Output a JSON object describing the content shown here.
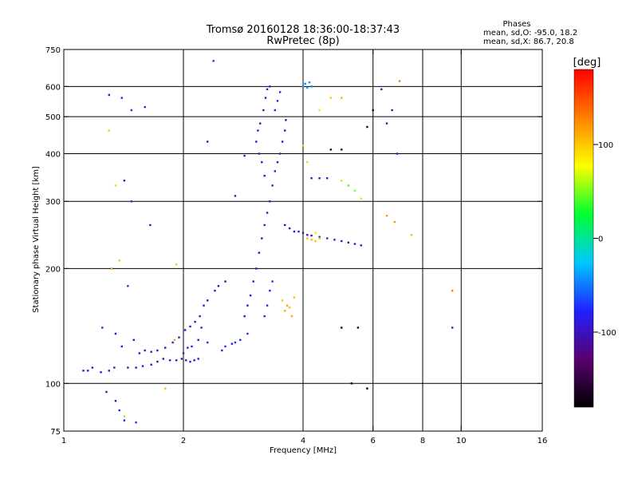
{
  "chart_data": {
    "type": "scatter",
    "title_line1": "Tromsø 20160128 18:36:00-18:37:43",
    "title_line2": "RwPretec (8p)",
    "stats": {
      "heading": "Phases",
      "line_o": "mean, sd,O: -95.0, 18.2",
      "line_x": "mean, sd,X: 86.7, 20.8"
    },
    "xlabel": "Frequency [MHz]",
    "ylabel": "Stationary phase Virtual Height [km]",
    "x_scale": "log",
    "y_scale": "log",
    "xlim": [
      1,
      16
    ],
    "ylim": [
      75,
      750
    ],
    "x_ticks": [
      1,
      2,
      4,
      6,
      8,
      10,
      16
    ],
    "y_ticks": [
      75,
      100,
      200,
      300,
      400,
      500,
      600,
      750
    ],
    "x_grid": [
      2,
      4,
      6,
      8,
      10
    ],
    "y_grid": [
      100,
      200,
      300,
      400,
      500,
      600
    ],
    "grid": true,
    "colorbar": {
      "label": "[deg]",
      "min": -180,
      "max": 180,
      "ticks": [
        100,
        0,
        -100
      ],
      "colors": [
        "#000000",
        "#5a0070",
        "#2020ff",
        "#00c8ff",
        "#00ff30",
        "#ffff00",
        "#ff8000",
        "#ff0000"
      ]
    },
    "series": [
      {
        "values": [
          [
            1.12,
            108,
            -100
          ],
          [
            1.15,
            108,
            -100
          ],
          [
            1.18,
            110,
            -95
          ],
          [
            1.24,
            107,
            -90
          ],
          [
            1.3,
            108,
            -100
          ],
          [
            1.34,
            110,
            -95
          ],
          [
            1.45,
            110,
            -100
          ],
          [
            1.52,
            110,
            -100
          ],
          [
            1.58,
            111,
            -95
          ],
          [
            1.66,
            112,
            -100
          ],
          [
            1.72,
            114,
            -100
          ],
          [
            1.78,
            116,
            -105
          ],
          [
            1.85,
            115,
            -100
          ],
          [
            1.92,
            115,
            -95
          ],
          [
            1.98,
            116,
            -100
          ],
          [
            2.03,
            115,
            -100
          ],
          [
            2.08,
            114,
            -95
          ],
          [
            2.13,
            115,
            -100
          ],
          [
            2.18,
            116,
            -100
          ],
          [
            1.55,
            120,
            -100
          ],
          [
            1.6,
            122,
            -95
          ],
          [
            1.66,
            121,
            -100
          ],
          [
            1.72,
            122,
            -100
          ],
          [
            1.8,
            124,
            -95
          ],
          [
            1.88,
            128,
            -100
          ],
          [
            1.95,
            132,
            -100
          ],
          [
            2.02,
            138,
            -105
          ],
          [
            2.08,
            141,
            -100
          ],
          [
            2.14,
            145,
            -100
          ],
          [
            2.2,
            150,
            -95
          ],
          [
            2.0,
            120,
            -80
          ],
          [
            2.05,
            124,
            -85
          ],
          [
            2.1,
            125,
            -80
          ],
          [
            2.18,
            130,
            -85
          ],
          [
            2.22,
            140,
            -80
          ],
          [
            2.3,
            128,
            -75
          ],
          [
            2.25,
            160,
            -100
          ],
          [
            2.3,
            165,
            -100
          ],
          [
            2.4,
            175,
            -95
          ],
          [
            2.45,
            180,
            -100
          ],
          [
            2.55,
            185,
            -100
          ],
          [
            2.5,
            122,
            -80
          ],
          [
            2.55,
            125,
            -75
          ],
          [
            2.65,
            127,
            -80
          ],
          [
            2.7,
            128,
            -75
          ],
          [
            2.78,
            130,
            -80
          ],
          [
            2.9,
            135,
            -75
          ],
          [
            2.85,
            150,
            -100
          ],
          [
            2.9,
            160,
            -100
          ],
          [
            2.95,
            170,
            -100
          ],
          [
            3.0,
            185,
            -95
          ],
          [
            3.05,
            200,
            -100
          ],
          [
            3.1,
            220,
            -100
          ],
          [
            3.15,
            240,
            -100
          ],
          [
            3.2,
            260,
            -95
          ],
          [
            3.25,
            280,
            -100
          ],
          [
            3.3,
            300,
            -100
          ],
          [
            3.35,
            330,
            -100
          ],
          [
            3.4,
            360,
            -95
          ],
          [
            3.45,
            380,
            -100
          ],
          [
            3.5,
            400,
            -100
          ],
          [
            3.55,
            430,
            -100
          ],
          [
            3.6,
            460,
            -95
          ],
          [
            3.62,
            490,
            -100
          ],
          [
            3.2,
            350,
            -100
          ],
          [
            3.15,
            380,
            -100
          ],
          [
            3.1,
            400,
            -95
          ],
          [
            3.05,
            430,
            -100
          ],
          [
            3.08,
            460,
            -100
          ],
          [
            3.12,
            480,
            -100
          ],
          [
            3.18,
            520,
            -95
          ],
          [
            3.22,
            560,
            -100
          ],
          [
            3.25,
            590,
            -100
          ],
          [
            3.3,
            600,
            -95
          ],
          [
            3.4,
            520,
            -80
          ],
          [
            3.45,
            550,
            -75
          ],
          [
            3.5,
            580,
            -80
          ],
          [
            3.2,
            150,
            -80
          ],
          [
            3.25,
            160,
            -75
          ],
          [
            3.3,
            175,
            -80
          ],
          [
            3.35,
            185,
            -75
          ],
          [
            3.6,
            260,
            -100
          ],
          [
            3.7,
            255,
            -100
          ],
          [
            3.8,
            250,
            -95
          ],
          [
            3.9,
            250,
            -100
          ],
          [
            4.0,
            248,
            -100
          ],
          [
            4.1,
            245,
            -100
          ],
          [
            4.2,
            244,
            -95
          ],
          [
            4.4,
            242,
            -100
          ],
          [
            4.6,
            240,
            -100
          ],
          [
            4.8,
            238,
            -95
          ],
          [
            5.0,
            236,
            -100
          ],
          [
            5.2,
            234,
            -100
          ],
          [
            5.4,
            232,
            -95
          ],
          [
            5.6,
            230,
            -100
          ],
          [
            4.1,
            240,
            105
          ],
          [
            4.2,
            238,
            110
          ],
          [
            4.3,
            236,
            105
          ],
          [
            4.4,
            240,
            100
          ],
          [
            4.3,
            248,
            95
          ],
          [
            3.6,
            155,
            110
          ],
          [
            3.65,
            160,
            115
          ],
          [
            3.7,
            158,
            105
          ],
          [
            3.75,
            150,
            110
          ],
          [
            3.55,
            165,
            100
          ],
          [
            3.8,
            168,
            105
          ],
          [
            4.0,
            600,
            -40
          ],
          [
            4.05,
            610,
            -45
          ],
          [
            4.1,
            595,
            -35
          ],
          [
            4.15,
            615,
            -40
          ],
          [
            4.2,
            600,
            -45
          ],
          [
            4.2,
            345,
            -95
          ],
          [
            4.4,
            345,
            -100
          ],
          [
            4.6,
            345,
            -95
          ],
          [
            5.0,
            340,
            60
          ],
          [
            5.2,
            330,
            40
          ],
          [
            5.4,
            320,
            50
          ],
          [
            5.6,
            305,
            60
          ],
          [
            4.1,
            380,
            95
          ],
          [
            4.0,
            420,
            100
          ],
          [
            4.4,
            520,
            90
          ],
          [
            4.7,
            560,
            100
          ],
          [
            5.0,
            560,
            110
          ],
          [
            5.0,
            410,
            -150
          ],
          [
            5.0,
            140,
            -180
          ],
          [
            5.5,
            140,
            -170
          ],
          [
            4.7,
            410,
            -170
          ],
          [
            5.8,
            470,
            -160
          ],
          [
            5.3,
            100,
            -180
          ],
          [
            5.8,
            97,
            -180
          ],
          [
            1.3,
            570,
            -100
          ],
          [
            1.4,
            560,
            -80
          ],
          [
            1.48,
            520,
            -70
          ],
          [
            1.6,
            530,
            -75
          ],
          [
            1.42,
            340,
            -100
          ],
          [
            1.48,
            300,
            -75
          ],
          [
            1.65,
            260,
            -100
          ],
          [
            1.3,
            460,
            100
          ],
          [
            1.35,
            330,
            95
          ],
          [
            1.32,
            200,
            120
          ],
          [
            1.38,
            210,
            100
          ],
          [
            1.45,
            180,
            -70
          ],
          [
            1.25,
            140,
            -80
          ],
          [
            1.35,
            135,
            -90
          ],
          [
            1.5,
            130,
            -100
          ],
          [
            1.4,
            125,
            -95
          ],
          [
            1.28,
            95,
            -100
          ],
          [
            1.35,
            90,
            -100
          ],
          [
            1.38,
            85,
            -80
          ],
          [
            1.42,
            80,
            -90
          ],
          [
            1.52,
            79,
            -70
          ],
          [
            1.42,
            82,
            50
          ],
          [
            1.92,
            205,
            100
          ],
          [
            1.8,
            97,
            105
          ],
          [
            1.9,
            130,
            110
          ],
          [
            2.38,
            700,
            -75
          ],
          [
            2.3,
            430,
            -110
          ],
          [
            2.7,
            310,
            -100
          ],
          [
            2.85,
            395,
            -100
          ],
          [
            6.3,
            590,
            -100
          ],
          [
            6.5,
            480,
            -100
          ],
          [
            6.7,
            520,
            -100
          ],
          [
            6.9,
            400,
            -100
          ],
          [
            7.0,
            620,
            130
          ],
          [
            6.5,
            275,
            120
          ],
          [
            6.8,
            265,
            120
          ],
          [
            7.5,
            245,
            105
          ],
          [
            9.5,
            175,
            130
          ],
          [
            9.5,
            140,
            -100
          ],
          [
            6.0,
            520,
            -160
          ]
        ]
      }
    ]
  }
}
